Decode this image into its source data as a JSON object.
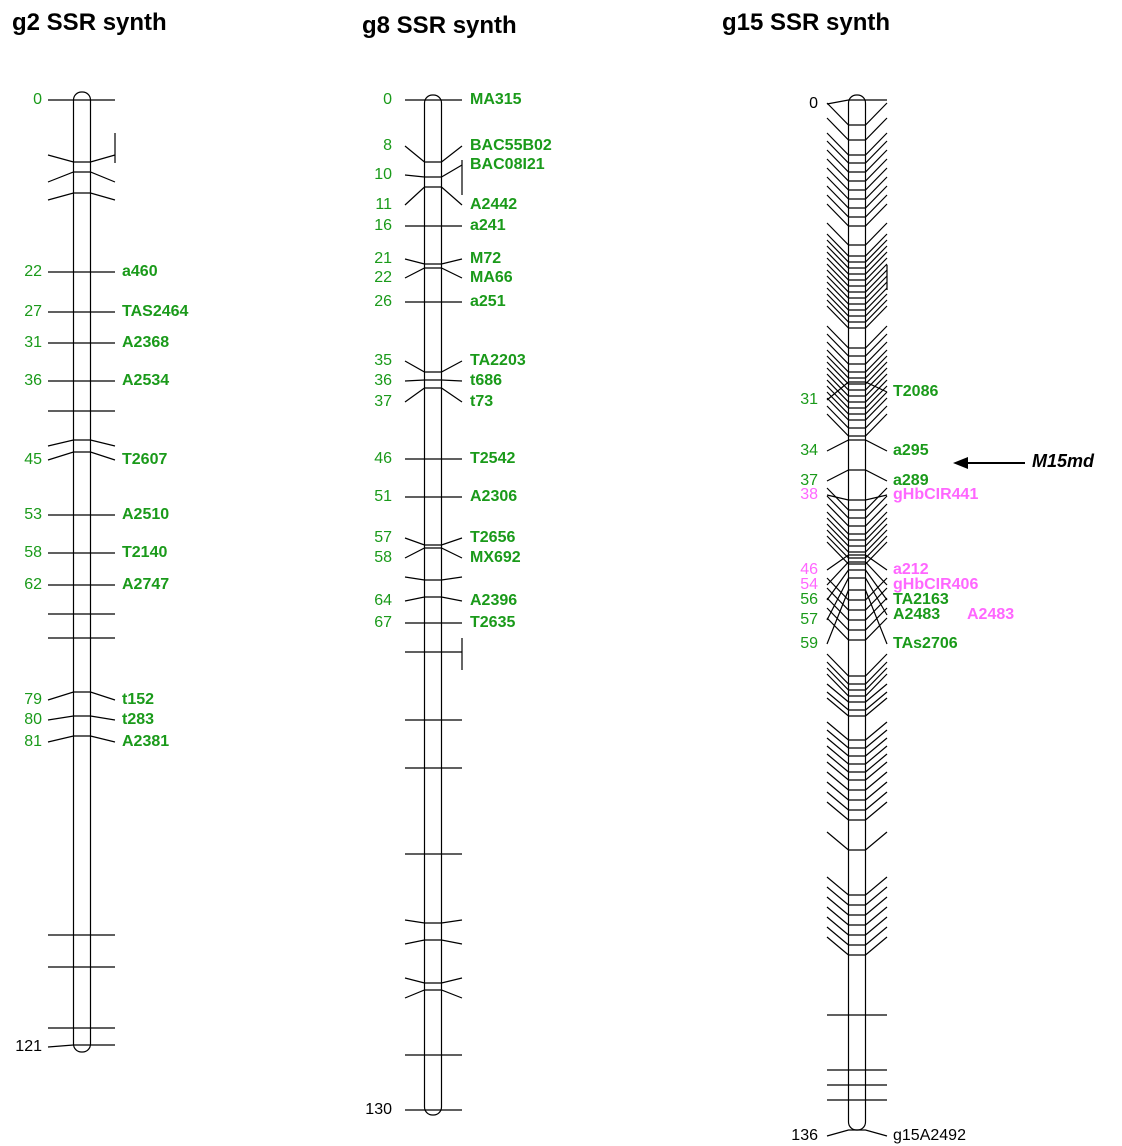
{
  "groups": [
    {
      "title": "g2 SSR synth",
      "color": "#1a9a1a",
      "markers": [
        {
          "position": "0"
        },
        {
          "position": "22",
          "name": "a460"
        },
        {
          "position": "27",
          "name": "TAS2464"
        },
        {
          "position": "31",
          "name": "A2368"
        },
        {
          "position": "36",
          "name": "A2534"
        },
        {
          "position": "45",
          "name": "T2607"
        },
        {
          "position": "53",
          "name": "A2510"
        },
        {
          "position": "58",
          "name": "T2140"
        },
        {
          "position": "62",
          "name": "A2747"
        },
        {
          "position": "79",
          "name": "t152"
        },
        {
          "position": "80",
          "name": "t283"
        },
        {
          "position": "81",
          "name": "A2381"
        },
        {
          "position": "121",
          "color": "#000000"
        }
      ]
    },
    {
      "title": "g8 SSR synth",
      "color": "#1a9a1a",
      "markers": [
        {
          "position": "0",
          "name": "MA315"
        },
        {
          "position": "8",
          "name": "BAC55B02"
        },
        {
          "position": "10",
          "name": "BAC08I21"
        },
        {
          "position": "11",
          "name": "A2442"
        },
        {
          "position": "16",
          "name": "a241"
        },
        {
          "position": "21",
          "name": "M72"
        },
        {
          "position": "22",
          "name": "MA66"
        },
        {
          "position": "26",
          "name": "a251"
        },
        {
          "position": "35",
          "name": "TA2203"
        },
        {
          "position": "36",
          "name": "t686"
        },
        {
          "position": "37",
          "name": "t73"
        },
        {
          "position": "46",
          "name": "T2542"
        },
        {
          "position": "51",
          "name": "A2306"
        },
        {
          "position": "57",
          "name": "T2656"
        },
        {
          "position": "58",
          "name": "MX692"
        },
        {
          "position": "64",
          "name": "A2396"
        },
        {
          "position": "67",
          "name": "T2635"
        },
        {
          "position": "130",
          "color": "#000000"
        }
      ]
    },
    {
      "title": "g15 SSR synth",
      "color": "#1a9a1a",
      "markers": [
        {
          "position": "0",
          "color": "#000000"
        },
        {
          "position": "31",
          "name": "T2086"
        },
        {
          "position": "34",
          "name": "a295"
        },
        {
          "position": "37",
          "name": "a289"
        },
        {
          "position": "38",
          "name": "gHbCIR441",
          "color": "#ff66ff"
        },
        {
          "position": "46",
          "name": "a212",
          "color": "#ff66ff"
        },
        {
          "position": "54",
          "name": "gHbCIR406",
          "color": "#ff66ff"
        },
        {
          "position": "56",
          "name": "TA2163"
        },
        {
          "position": "57",
          "name": "A2483"
        },
        {
          "name": "A2483",
          "color": "#ff66ff"
        },
        {
          "position": "59",
          "name": "TAs2706"
        },
        {
          "position": "136",
          "name": "g15A2492",
          "color": "#000000"
        }
      ]
    }
  ],
  "annotation": "M15md"
}
